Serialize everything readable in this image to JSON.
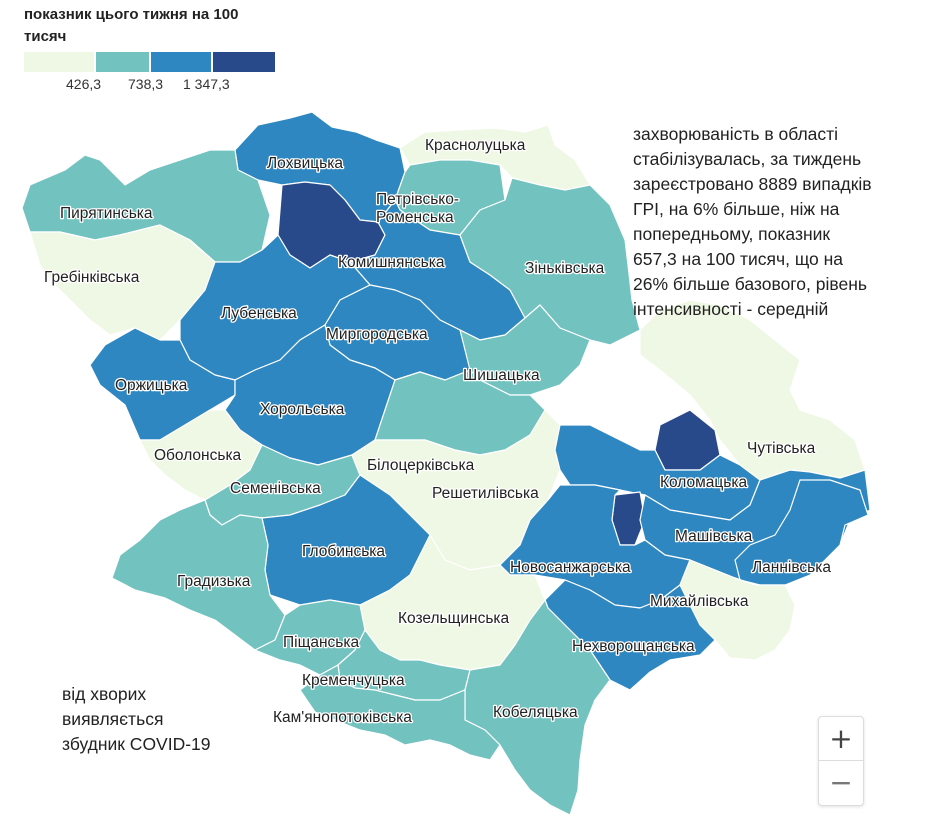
{
  "legend": {
    "title": "показник цього тижня на 100 тисяч",
    "colors": [
      "#eff8e4",
      "#72c2c0",
      "#2e87c0",
      "#294a8a"
    ],
    "ticks": [
      "426,3",
      "738,3",
      "1 347,3"
    ]
  },
  "regions": [
    {
      "id": "lokhvytska",
      "label": "Лохвицька",
      "color": "#2e87c0"
    },
    {
      "id": "krasnolutska",
      "label": "Краснолуцька",
      "color": "#eff8e4"
    },
    {
      "id": "petrivsko",
      "label": "Петрівсько-Роменська",
      "color": "#72c2c0"
    },
    {
      "id": "pyriatynska",
      "label": "Пирятинська",
      "color": "#72c2c0"
    },
    {
      "id": "hrebinkivska",
      "label": "Гребінківська",
      "color": "#eff8e4"
    },
    {
      "id": "dark-north",
      "label": "",
      "color": "#294a8a"
    },
    {
      "id": "komyshnianska",
      "label": "Комишнянська",
      "color": "#2e87c0"
    },
    {
      "id": "zinkivska",
      "label": "Зіньківська",
      "color": "#72c2c0"
    },
    {
      "id": "lubenska",
      "label": "Лубенська",
      "color": "#2e87c0"
    },
    {
      "id": "myrhorodska",
      "label": "Миргородська",
      "color": "#2e87c0"
    },
    {
      "id": "orzhytska",
      "label": "Оржицька",
      "color": "#2e87c0"
    },
    {
      "id": "shyshatska",
      "label": "Шишацька",
      "color": "#72c2c0"
    },
    {
      "id": "khorolska",
      "label": "Хорольська",
      "color": "#2e87c0"
    },
    {
      "id": "obolonska",
      "label": "Оболонська",
      "color": "#eff8e4"
    },
    {
      "id": "chutivska",
      "label": "Чутівська",
      "color": "#eff8e4"
    },
    {
      "id": "dark-east",
      "label": "",
      "color": "#294a8a"
    },
    {
      "id": "bilotserkivska",
      "label": "Білоцерківська",
      "color": "#72c2c0"
    },
    {
      "id": "semenivska",
      "label": "Семенівська",
      "color": "#72c2c0"
    },
    {
      "id": "reshetylivska",
      "label": "Решетилівська",
      "color": "#eff8e4"
    },
    {
      "id": "kolomatska",
      "label": "Коломацька",
      "color": "#2e87c0"
    },
    {
      "id": "dark-center",
      "label": "",
      "color": "#294a8a"
    },
    {
      "id": "hlobynska",
      "label": "Глобинська",
      "color": "#2e87c0"
    },
    {
      "id": "mashivska",
      "label": "Машівська",
      "color": "#2e87c0"
    },
    {
      "id": "lannivska",
      "label": "Ланнівська",
      "color": "#2e87c0"
    },
    {
      "id": "novosanzharska",
      "label": "Новосанжарська",
      "color": "#2e87c0"
    },
    {
      "id": "hradyzka",
      "label": "Градизька",
      "color": "#72c2c0"
    },
    {
      "id": "mykhailivska",
      "label": "Михайлівська",
      "color": "#eff8e4"
    },
    {
      "id": "kozelshchynska",
      "label": "Козельщинська",
      "color": "#eff8e4"
    },
    {
      "id": "pishchanska",
      "label": "Піщанська",
      "color": "#72c2c0"
    },
    {
      "id": "nekhvoroshchanska",
      "label": "Нехворощанська",
      "color": "#2e87c0"
    },
    {
      "id": "kremenchutska",
      "label": "Кременчуцька",
      "color": "#72c2c0"
    },
    {
      "id": "kobeliatska",
      "label": "Кобеляцька",
      "color": "#72c2c0"
    },
    {
      "id": "kamianopotokivska",
      "label": "Кам'янопотоківська",
      "color": "#72c2c0"
    }
  ],
  "annotations": {
    "main_text": "захворюваність в області стабілізувалась, за тиждень зареєстровано 8889 випадків ГРІ, на 6% більше, ніж на попередньому, показник 657,3 на 100 тисяч, що на 26% більше базового, рівень інтенсивності - середній",
    "covid_text": "від хворих виявляється збудник COVID-19"
  },
  "zoom": {
    "in_label": "+",
    "out_label": "−"
  }
}
